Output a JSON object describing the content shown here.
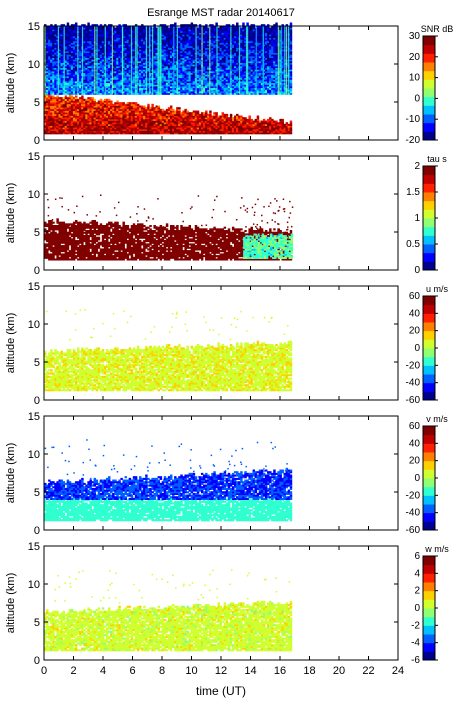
{
  "figure": {
    "title": "Esrange MST radar 20140617",
    "xlabel": "time (UT)"
  },
  "colormap": [
    "#00008f",
    "#0000ff",
    "#0060ff",
    "#00c0ff",
    "#30ffd0",
    "#90ff70",
    "#d0ff30",
    "#ffd000",
    "#ff8000",
    "#ff2000",
    "#c00000",
    "#800000"
  ],
  "chart_data": [
    {
      "type": "heatmap",
      "panel": "snr",
      "ylabel": "altitude (km)",
      "colorbar_label": "SNR dB",
      "x_range": [
        0,
        24
      ],
      "y_range": [
        0,
        15
      ],
      "x_ticks": [
        "0",
        "2",
        "4",
        "6",
        "8",
        "10",
        "12",
        "14",
        "16",
        "18",
        "20",
        "22",
        "24"
      ],
      "y_ticks": [
        "0",
        "5",
        "10",
        "15"
      ],
      "c_range": [
        -20,
        30
      ],
      "c_ticks": [
        "30",
        "20",
        "10",
        "0",
        "-10",
        "-20"
      ],
      "data_coverage_hours": [
        0,
        16.8
      ],
      "features": [
        {
          "name": "high SNR layer",
          "t0": 0,
          "t1": 16.8,
          "z_bottom": 0.8,
          "z_top_start": 6.0,
          "z_top_end": 2.2,
          "snr": 25
        },
        {
          "name": "upper background",
          "t0": 0,
          "t1": 16.8,
          "z_bottom": 6,
          "z_top": 15,
          "snr": -8
        }
      ]
    },
    {
      "type": "heatmap",
      "panel": "tau",
      "ylabel": "altitude (km)",
      "colorbar_label": "tau s",
      "x_range": [
        0,
        24
      ],
      "y_range": [
        0,
        15
      ],
      "x_ticks": [
        "0",
        "2",
        "4",
        "6",
        "8",
        "10",
        "12",
        "14",
        "16",
        "18",
        "20",
        "22",
        "24"
      ],
      "y_ticks": [
        "0",
        "5",
        "10",
        "15"
      ],
      "c_range": [
        0,
        2
      ],
      "c_ticks": [
        "2",
        "1.5",
        "1",
        "0.5",
        "0"
      ],
      "features": [
        {
          "name": "dense region",
          "t0": 0,
          "t1": 16.8,
          "z_bottom": 1.3,
          "z_top_start": 6.4,
          "z_top_end": 5.0,
          "tau": 2.0
        },
        {
          "name": "shorter tau streak",
          "t0": 13.5,
          "t1": 16.8,
          "z_bottom": 1.5,
          "z_top": 4.5,
          "tau": 0.8
        }
      ]
    },
    {
      "type": "heatmap",
      "panel": "u",
      "ylabel": "altitude (km)",
      "colorbar_label": "u m/s",
      "x_range": [
        0,
        24
      ],
      "y_range": [
        0,
        15
      ],
      "x_ticks": [
        "0",
        "2",
        "4",
        "6",
        "8",
        "10",
        "12",
        "14",
        "16",
        "18",
        "20",
        "22",
        "24"
      ],
      "y_ticks": [
        "0",
        "5",
        "10",
        "15"
      ],
      "c_range": [
        -60,
        60
      ],
      "c_ticks": [
        "60",
        "40",
        "20",
        "0",
        "-20",
        "-40",
        "-60"
      ],
      "features": [
        {
          "name": "wind field",
          "t0": 0,
          "t1": 16.8,
          "z_bottom": 1.2,
          "z_top_start": 6.3,
          "z_top_end": 7.5,
          "u": 8
        }
      ]
    },
    {
      "type": "heatmap",
      "panel": "v",
      "ylabel": "altitude (km)",
      "colorbar_label": "v m/s",
      "x_range": [
        0,
        24
      ],
      "y_range": [
        0,
        15
      ],
      "x_ticks": [
        "0",
        "2",
        "4",
        "6",
        "8",
        "10",
        "12",
        "14",
        "16",
        "18",
        "20",
        "22",
        "24"
      ],
      "y_ticks": [
        "0",
        "5",
        "10",
        "15"
      ],
      "c_range": [
        -60,
        60
      ],
      "c_ticks": [
        "60",
        "40",
        "20",
        "0",
        "-20",
        "-40",
        "-60"
      ],
      "features": [
        {
          "name": "lower layer",
          "t0": 0,
          "t1": 16.8,
          "z_bottom": 1.2,
          "z_top": 4,
          "v": -15
        },
        {
          "name": "upper layer",
          "t0": 0,
          "t1": 16.8,
          "z_bottom": 4,
          "z_top_start": 6.2,
          "z_top_end": 7.8,
          "v": -40
        }
      ]
    },
    {
      "type": "heatmap",
      "panel": "w",
      "ylabel": "altitude (km)",
      "colorbar_label": "w m/s",
      "x_range": [
        0,
        24
      ],
      "y_range": [
        0,
        15
      ],
      "x_ticks": [
        "0",
        "2",
        "4",
        "6",
        "8",
        "10",
        "12",
        "14",
        "16",
        "18",
        "20",
        "22",
        "24"
      ],
      "y_ticks": [
        "0",
        "5",
        "10",
        "15"
      ],
      "c_range": [
        -6,
        6
      ],
      "c_ticks": [
        "6",
        "4",
        "2",
        "0",
        "-2",
        "-4",
        "-6"
      ],
      "features": [
        {
          "name": "vertical wind field",
          "t0": 0,
          "t1": 16.8,
          "z_bottom": 1.2,
          "z_top_start": 6.3,
          "z_top_end": 7.6,
          "w": 0.5
        }
      ]
    }
  ]
}
